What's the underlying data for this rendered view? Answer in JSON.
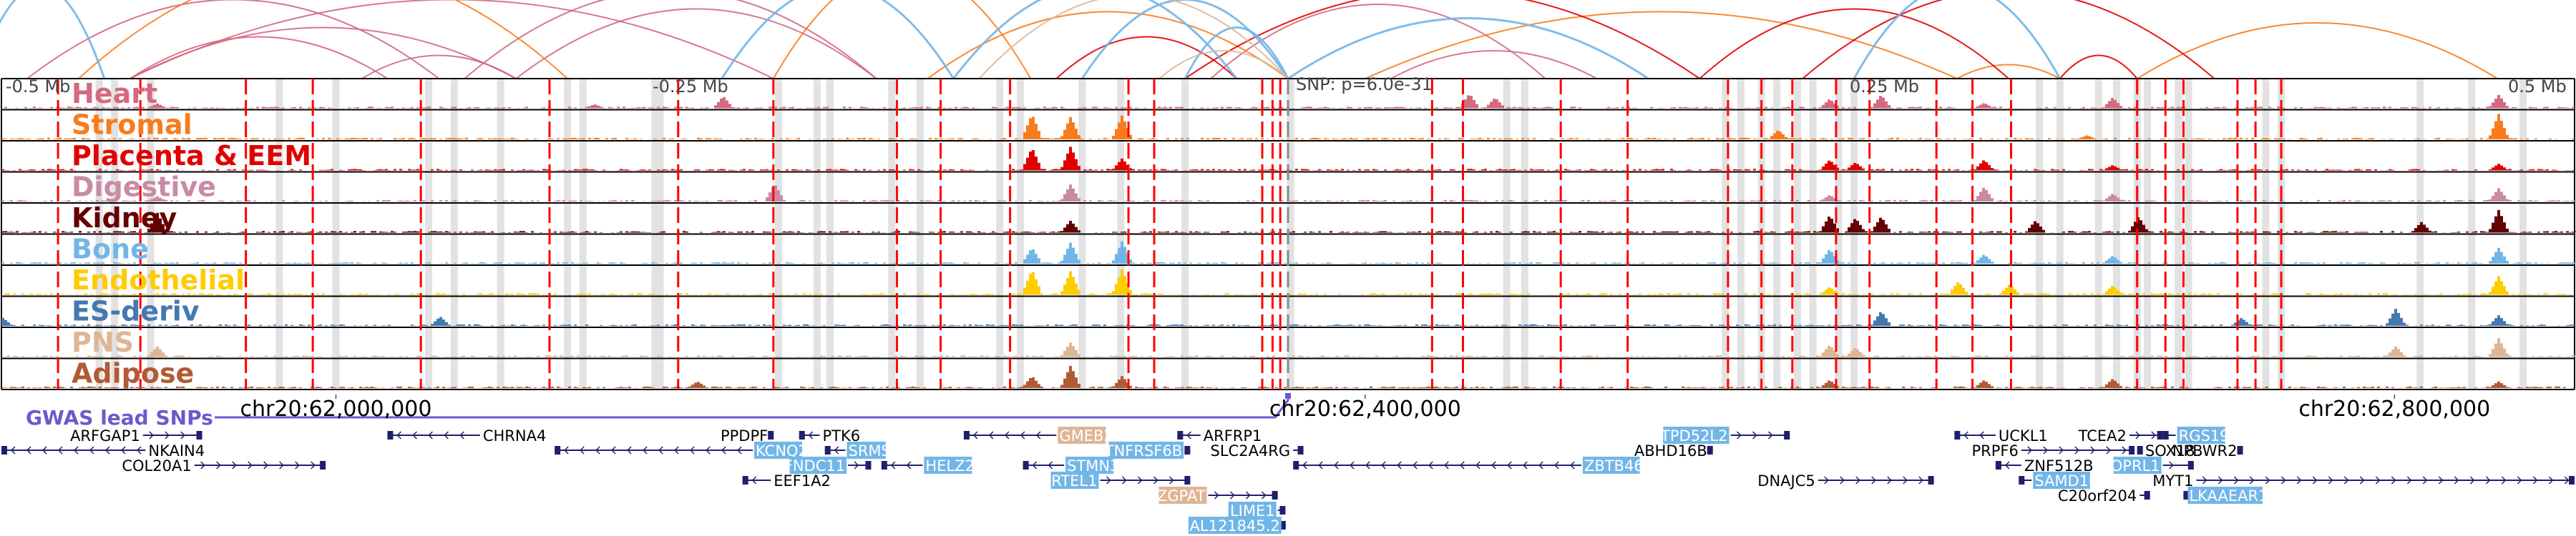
{
  "chart_data": {
    "type": "genome-browser",
    "title": "",
    "region": {
      "chrom": "chr20",
      "relative_range_mb": [
        -0.5,
        0.5
      ]
    },
    "relative_axis_ticks": [
      {
        "label": "-0.5 Mb",
        "pos_mb": -0.5
      },
      {
        "label": "-0.25 Mb",
        "pos_mb": -0.25
      },
      {
        "label": "0.25 Mb",
        "pos_mb": 0.25
      },
      {
        "label": "0.5 Mb",
        "pos_mb": 0.5
      }
    ],
    "snp_annotation": "SNP: p=6.0e-31",
    "coordinate_ticks": [
      {
        "label": "chr20:62,000,000",
        "pos_mb": -0.37
      },
      {
        "label": "chr20:62,400,000",
        "pos_mb": 0.03
      },
      {
        "label": "chr20:62,800,000",
        "pos_mb": 0.43
      }
    ],
    "tracks": [
      {
        "name": "Heart",
        "color": "#d4697f",
        "peaks": [
          [
            -0.44,
            0.18
          ],
          [
            -0.22,
            0.45
          ],
          [
            0.07,
            0.55
          ],
          [
            0.08,
            0.4
          ],
          [
            -0.27,
            0.15
          ],
          [
            0.21,
            0.35
          ],
          [
            0.23,
            0.5
          ],
          [
            0.27,
            0.2
          ],
          [
            0.32,
            0.4
          ],
          [
            0.47,
            0.5
          ]
        ]
      },
      {
        "name": "Stromal",
        "color": "#f97c1b",
        "peaks": [
          [
            -0.1,
            0.95
          ],
          [
            -0.085,
            0.85
          ],
          [
            -0.065,
            0.9
          ],
          [
            0.19,
            0.35
          ],
          [
            0.31,
            0.15
          ],
          [
            0.47,
            0.95
          ]
        ]
      },
      {
        "name": "Placenta & EEM",
        "color": "#e00000",
        "peaks": [
          [
            -0.1,
            0.85
          ],
          [
            -0.085,
            0.9
          ],
          [
            -0.065,
            0.45
          ],
          [
            0.21,
            0.4
          ],
          [
            0.22,
            0.3
          ],
          [
            0.27,
            0.4
          ],
          [
            0.32,
            0.2
          ],
          [
            0.47,
            0.25
          ]
        ]
      },
      {
        "name": "Digestive",
        "color": "#c98aa6",
        "peaks": [
          [
            -0.44,
            0.2
          ],
          [
            -0.2,
            0.65
          ],
          [
            -0.085,
            0.65
          ],
          [
            0.21,
            0.25
          ],
          [
            0.27,
            0.55
          ],
          [
            0.32,
            0.3
          ],
          [
            0.47,
            0.5
          ]
        ]
      },
      {
        "name": "Kidney",
        "color": "#650000",
        "peaks": [
          [
            -0.44,
            0.75
          ],
          [
            -0.085,
            0.45
          ],
          [
            0.21,
            0.65
          ],
          [
            0.22,
            0.55
          ],
          [
            0.23,
            0.6
          ],
          [
            0.29,
            0.45
          ],
          [
            0.33,
            0.6
          ],
          [
            0.44,
            0.4
          ],
          [
            0.47,
            0.85
          ]
        ]
      },
      {
        "name": "Bone",
        "color": "#72b6e8",
        "peaks": [
          [
            -0.1,
            0.6
          ],
          [
            -0.085,
            0.8
          ],
          [
            -0.065,
            0.85
          ],
          [
            0.21,
            0.55
          ],
          [
            0.27,
            0.35
          ],
          [
            0.32,
            0.3
          ],
          [
            0.47,
            0.6
          ]
        ]
      },
      {
        "name": "Endothelial",
        "color": "#ffcc00",
        "peaks": [
          [
            -0.1,
            0.95
          ],
          [
            -0.085,
            0.9
          ],
          [
            -0.065,
            0.95
          ],
          [
            0.21,
            0.3
          ],
          [
            0.26,
            0.5
          ],
          [
            0.28,
            0.4
          ],
          [
            0.32,
            0.35
          ],
          [
            0.47,
            0.7
          ]
        ]
      },
      {
        "name": "ES-deriv",
        "color": "#4479b0",
        "peaks": [
          [
            -0.5,
            0.3
          ],
          [
            -0.33,
            0.35
          ],
          [
            0.23,
            0.55
          ],
          [
            0.37,
            0.3
          ],
          [
            0.43,
            0.65
          ],
          [
            0.47,
            0.4
          ]
        ]
      },
      {
        "name": "PNS",
        "color": "#ddb696",
        "peaks": [
          [
            -0.44,
            0.4
          ],
          [
            -0.085,
            0.55
          ],
          [
            0.21,
            0.45
          ],
          [
            0.22,
            0.35
          ],
          [
            0.43,
            0.4
          ],
          [
            0.47,
            0.7
          ]
        ]
      },
      {
        "name": "Adipose",
        "color": "#b05a36",
        "peaks": [
          [
            -0.1,
            0.45
          ],
          [
            -0.085,
            0.85
          ],
          [
            -0.065,
            0.45
          ],
          [
            -0.23,
            0.25
          ],
          [
            0.21,
            0.3
          ],
          [
            0.27,
            0.3
          ],
          [
            0.32,
            0.35
          ],
          [
            0.47,
            0.25
          ]
        ]
      }
    ],
    "gwas_track": {
      "label": "GWAS lead SNPs",
      "color": "#6a5acd",
      "lead_snp_pos_mb": 0.0
    },
    "genes": [
      {
        "name": "ARFGAP1",
        "strand": "+",
        "row": 0,
        "start_mb": -0.445,
        "end_mb": -0.422,
        "highlight": "none"
      },
      {
        "name": "NKAIN4",
        "strand": "-",
        "row": 1,
        "start_mb": -0.5,
        "end_mb": -0.444,
        "highlight": "none"
      },
      {
        "name": "COL20A1",
        "strand": "+",
        "row": 2,
        "start_mb": -0.425,
        "end_mb": -0.374,
        "highlight": "none"
      },
      {
        "name": "CHRNA4",
        "strand": "-",
        "row": 0,
        "start_mb": -0.35,
        "end_mb": -0.314,
        "highlight": "none"
      },
      {
        "name": "KCNQ2",
        "strand": "-",
        "row": 1,
        "start_mb": -0.285,
        "end_mb": -0.208,
        "highlight": "blue"
      },
      {
        "name": "PPDPF",
        "strand": "+",
        "row": 0,
        "start_mb": -0.201,
        "end_mb": -0.2,
        "highlight": "none"
      },
      {
        "name": "PTK6",
        "strand": "-",
        "row": 0,
        "start_mb": -0.19,
        "end_mb": -0.182,
        "highlight": "none"
      },
      {
        "name": "SRMS",
        "strand": "-",
        "row": 1,
        "start_mb": -0.18,
        "end_mb": -0.172,
        "highlight": "blue"
      },
      {
        "name": "FNDC11",
        "strand": "+",
        "row": 2,
        "start_mb": -0.171,
        "end_mb": -0.162,
        "highlight": "blue"
      },
      {
        "name": "HELZ2",
        "strand": "-",
        "row": 2,
        "start_mb": -0.158,
        "end_mb": -0.142,
        "highlight": "blue"
      },
      {
        "name": "EEF1A2",
        "strand": "-",
        "row": 3,
        "start_mb": -0.212,
        "end_mb": -0.201,
        "highlight": "none"
      },
      {
        "name": "GMEB2",
        "strand": "-",
        "row": 0,
        "start_mb": -0.126,
        "end_mb": -0.09,
        "highlight": "tan"
      },
      {
        "name": "TNFRSF6B",
        "strand": "+",
        "row": 1,
        "start_mb": -0.04,
        "end_mb": -0.038,
        "highlight": "blue"
      },
      {
        "name": "STMN3",
        "strand": "-",
        "row": 2,
        "start_mb": -0.103,
        "end_mb": -0.087,
        "highlight": "blue"
      },
      {
        "name": "RTEL1",
        "strand": "+",
        "row": 3,
        "start_mb": -0.073,
        "end_mb": -0.038,
        "highlight": "blue"
      },
      {
        "name": "ZGPAT",
        "strand": "+",
        "row": 4,
        "start_mb": -0.031,
        "end_mb": -0.004,
        "highlight": "tan"
      },
      {
        "name": "LIME1",
        "strand": "+",
        "row": 5,
        "start_mb": -0.004,
        "end_mb": -0.001,
        "highlight": "blue"
      },
      {
        "name": "AL121845.2",
        "strand": "+",
        "row": 6,
        "start_mb": -0.002,
        "end_mb": -0.001,
        "highlight": "blue"
      },
      {
        "name": "ARFRP1",
        "strand": "-",
        "row": 0,
        "start_mb": -0.043,
        "end_mb": -0.034,
        "highlight": "none"
      },
      {
        "name": "SLC2A4RG",
        "strand": "+",
        "row": 1,
        "start_mb": 0.002,
        "end_mb": 0.006,
        "highlight": "none"
      },
      {
        "name": "ZBTB46",
        "strand": "-",
        "row": 2,
        "start_mb": 0.002,
        "end_mb": 0.114,
        "highlight": "blue"
      },
      {
        "name": "TPD52L2",
        "strand": "+",
        "row": 0,
        "start_mb": 0.172,
        "end_mb": 0.195,
        "highlight": "blue"
      },
      {
        "name": "ABHD16B",
        "strand": "+",
        "row": 1,
        "start_mb": 0.164,
        "end_mb": 0.165,
        "highlight": "none"
      },
      {
        "name": "DNAJC5",
        "strand": "+",
        "row": 3,
        "start_mb": 0.206,
        "end_mb": 0.251,
        "highlight": "none"
      },
      {
        "name": "UCKL1",
        "strand": "-",
        "row": 0,
        "start_mb": 0.259,
        "end_mb": 0.275,
        "highlight": "none"
      },
      {
        "name": "PRPF6",
        "strand": "+",
        "row": 1,
        "start_mb": 0.285,
        "end_mb": 0.329,
        "highlight": "none"
      },
      {
        "name": "ZNF512B",
        "strand": "-",
        "row": 2,
        "start_mb": 0.275,
        "end_mb": 0.285,
        "highlight": "none"
      },
      {
        "name": "SAMD10",
        "strand": "-",
        "row": 3,
        "start_mb": 0.284,
        "end_mb": 0.289,
        "highlight": "blue"
      },
      {
        "name": "C20orf204",
        "strand": "+",
        "row": 4,
        "start_mb": 0.331,
        "end_mb": 0.335,
        "highlight": "none"
      },
      {
        "name": "TCEA2",
        "strand": "+",
        "row": 0,
        "start_mb": 0.327,
        "end_mb": 0.34,
        "highlight": "none"
      },
      {
        "name": "RGS19",
        "strand": "-",
        "row": 0,
        "start_mb": 0.34,
        "end_mb": 0.345,
        "highlight": "blue"
      },
      {
        "name": "SOX18",
        "strand": "-",
        "row": 1,
        "start_mb": 0.33,
        "end_mb": 0.332,
        "highlight": "none"
      },
      {
        "name": "NPBWR2",
        "strand": "+",
        "row": 1,
        "start_mb": 0.37,
        "end_mb": 0.371,
        "highlight": "none"
      },
      {
        "name": "OPRL1",
        "strand": "+",
        "row": 2,
        "start_mb": 0.34,
        "end_mb": 0.352,
        "highlight": "blue"
      },
      {
        "name": "MYT1",
        "strand": "+",
        "row": 3,
        "start_mb": 0.353,
        "end_mb": 0.5,
        "highlight": "none"
      },
      {
        "name": "LKAAEAR1",
        "strand": "-",
        "row": 4,
        "start_mb": 0.348,
        "end_mb": 0.349,
        "highlight": "blue"
      }
    ],
    "highlight_colors": {
      "blue": "#72b6e8",
      "tan": "#ddb696"
    },
    "gene_color": "#1f1f6e",
    "snp_marker_color": "#ff0000",
    "snp_marker_positions_mb": [
      -0.478,
      -0.446,
      -0.405,
      -0.379,
      -0.337,
      -0.287,
      -0.237,
      -0.2,
      -0.152,
      -0.135,
      -0.108,
      -0.062,
      -0.052,
      -0.01,
      -0.006,
      -0.003,
      0.056,
      0.068,
      0.106,
      0.132,
      0.171,
      0.184,
      0.196,
      0.213,
      0.226,
      0.252,
      0.266,
      0.281,
      0.33,
      0.341,
      0.348,
      0.369,
      0.376,
      0.386
    ],
    "gray_band_positions_mb": [
      -0.462,
      -0.456,
      -0.442,
      -0.392,
      -0.37,
      -0.334,
      -0.324,
      -0.306,
      -0.28,
      -0.274,
      -0.246,
      -0.244,
      -0.198,
      -0.183,
      -0.178,
      -0.154,
      -0.143,
      -0.112,
      -0.104,
      -0.08,
      -0.065,
      -0.04,
      0.001,
      0.085,
      0.092,
      0.17,
      0.176,
      0.184,
      0.19,
      0.198,
      0.204,
      0.214,
      0.22,
      0.292,
      0.3,
      0.315,
      0.322,
      0.33,
      0.334,
      0.346,
      0.35,
      0.38,
      0.386,
      0.44,
      0.46,
      0.48
    ],
    "arcs": [
      {
        "track": "Heart",
        "from_mb": -0.49,
        "to_mb": -0.33,
        "height": 0.85
      },
      {
        "track": "Heart",
        "from_mb": -0.45,
        "to_mb": -0.2,
        "height": 0.85
      },
      {
        "track": "Heart",
        "from_mb": -0.45,
        "to_mb": -0.3,
        "height": 0.55
      },
      {
        "track": "Heart",
        "from_mb": -0.45,
        "to_mb": -0.35,
        "height": 0.45
      },
      {
        "track": "Heart",
        "from_mb": -0.32,
        "to_mb": -0.16,
        "height": 0.95
      },
      {
        "track": "Heart",
        "from_mb": -0.3,
        "to_mb": -0.16,
        "height": 0.75
      },
      {
        "track": "Heart",
        "from_mb": -0.36,
        "to_mb": -0.3,
        "height": 0.25
      },
      {
        "track": "Heart",
        "from_mb": -0.03,
        "to_mb": 0.1,
        "height": 0.8
      },
      {
        "track": "Heart",
        "from_mb": 0.04,
        "to_mb": 0.12,
        "height": 0.3
      },
      {
        "track": "Stromal",
        "from_mb": -0.47,
        "to_mb": -0.28,
        "height": 1.2
      },
      {
        "track": "Stromal",
        "from_mb": -0.2,
        "to_mb": -0.1,
        "height": 1.2
      },
      {
        "track": "Stromal",
        "from_mb": -0.14,
        "to_mb": 0.0,
        "height": 0.72
      },
      {
        "track": "Stromal",
        "from_mb": 0.03,
        "to_mb": 0.26,
        "height": 0.72
      },
      {
        "track": "Stromal",
        "from_mb": 0.26,
        "to_mb": 0.3,
        "height": 0.15
      },
      {
        "track": "Stromal",
        "from_mb": 0.33,
        "to_mb": 0.47,
        "height": 0.6
      },
      {
        "track": "Placenta & EEM",
        "from_mb": -0.09,
        "to_mb": -0.02,
        "height": 0.45
      },
      {
        "track": "Placenta & EEM",
        "from_mb": -0.04,
        "to_mb": 0.16,
        "height": 0.95
      },
      {
        "track": "Placenta & EEM",
        "from_mb": 0.16,
        "to_mb": 0.28,
        "height": 0.75
      },
      {
        "track": "Placenta & EEM",
        "from_mb": 0.2,
        "to_mb": 0.36,
        "height": 0.95
      },
      {
        "track": "Placenta & EEM",
        "from_mb": 0.3,
        "to_mb": 0.33,
        "height": 0.25
      },
      {
        "track": "Bone",
        "from_mb": -0.51,
        "to_mb": -0.46,
        "height": 1.0
      },
      {
        "track": "Bone",
        "from_mb": -0.22,
        "to_mb": -0.13,
        "height": 1.0
      },
      {
        "track": "Bone",
        "from_mb": -0.13,
        "to_mb": -0.02,
        "height": 1.0
      },
      {
        "track": "Bone",
        "from_mb": -0.08,
        "to_mb": 0.0,
        "height": 0.85
      },
      {
        "track": "Bone",
        "from_mb": -0.04,
        "to_mb": 0.0,
        "height": 0.55
      },
      {
        "track": "Bone",
        "from_mb": 0.0,
        "to_mb": 0.14,
        "height": 0.65
      },
      {
        "track": "Bone",
        "from_mb": 0.22,
        "to_mb": 0.3,
        "height": 1.0
      },
      {
        "track": "PNS",
        "from_mb": -0.12,
        "to_mb": 0.0,
        "height": 0.9
      },
      {
        "track": "PNS",
        "from_mb": -0.05,
        "to_mb": 0.0,
        "height": 0.3
      }
    ],
    "xlabel": "",
    "ylabel": ""
  }
}
